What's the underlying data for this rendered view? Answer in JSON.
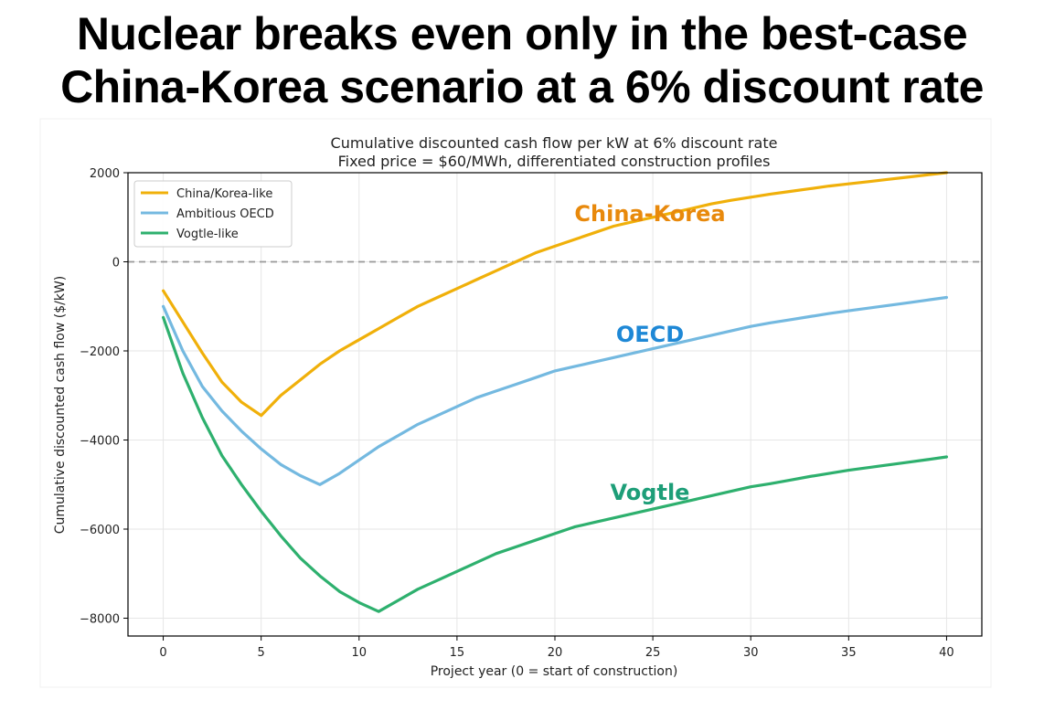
{
  "headline": {
    "line1": "Nuclear breaks even only in the best-case",
    "line2": "China-Korea scenario at a 6% discount rate"
  },
  "chart_data": {
    "type": "line",
    "title": "Cumulative discounted cash flow per kW at 6% discount rate",
    "subtitle": "Fixed price = $60/MWh, differentiated construction profiles",
    "xlabel": "Project year (0 = start of construction)",
    "ylabel": "Cumulative discounted cash flow ($/kW)",
    "xlim": [
      -1.8,
      41.8
    ],
    "ylim": [
      -8400,
      2000
    ],
    "xticks": [
      0,
      5,
      10,
      15,
      20,
      25,
      30,
      35,
      40
    ],
    "yticks": [
      2000,
      0,
      -2000,
      -4000,
      -6000,
      -8000
    ],
    "xtick_labels": [
      "0",
      "5",
      "10",
      "15",
      "20",
      "25",
      "30",
      "35",
      "40"
    ],
    "ytick_labels": [
      "2000",
      "0",
      "−2000",
      "−4000",
      "−6000",
      "−8000"
    ],
    "grid": true,
    "zero_line": true,
    "legend_position": "top-left",
    "series": [
      {
        "name": "China/Korea-like",
        "color": "#f0b00a",
        "x": [
          0,
          1,
          2,
          3,
          4,
          5,
          6,
          7,
          8,
          9,
          10,
          11,
          12,
          13,
          14,
          15,
          16,
          17,
          18,
          19,
          20,
          21,
          22,
          23,
          24,
          25,
          26,
          27,
          28,
          29,
          30,
          31,
          32,
          33,
          34,
          35,
          36,
          37,
          38,
          39,
          40
        ],
        "values": [
          -650,
          -1350,
          -2050,
          -2700,
          -3150,
          -3450,
          -3000,
          -2650,
          -2300,
          -2000,
          -1750,
          -1500,
          -1250,
          -1000,
          -800,
          -600,
          -400,
          -200,
          0,
          200,
          350,
          500,
          650,
          800,
          900,
          1000,
          1100,
          1200,
          1300,
          1380,
          1450,
          1520,
          1580,
          1640,
          1700,
          1750,
          1800,
          1850,
          1900,
          1950,
          2000
        ],
        "end_label": "China-Korea",
        "label_color": "#e8890c"
      },
      {
        "name": "Ambitious OECD",
        "color": "#74b9e0",
        "x": [
          0,
          1,
          2,
          3,
          4,
          5,
          6,
          7,
          8,
          9,
          10,
          11,
          12,
          13,
          14,
          15,
          16,
          17,
          18,
          19,
          20,
          21,
          22,
          23,
          24,
          25,
          26,
          27,
          28,
          29,
          30,
          31,
          32,
          33,
          34,
          35,
          36,
          37,
          38,
          39,
          40
        ],
        "values": [
          -1000,
          -2000,
          -2800,
          -3350,
          -3800,
          -4200,
          -4550,
          -4800,
          -5000,
          -4750,
          -4450,
          -4150,
          -3900,
          -3650,
          -3450,
          -3250,
          -3050,
          -2900,
          -2750,
          -2600,
          -2450,
          -2350,
          -2250,
          -2150,
          -2050,
          -1950,
          -1850,
          -1750,
          -1650,
          -1550,
          -1450,
          -1370,
          -1300,
          -1230,
          -1160,
          -1100,
          -1040,
          -980,
          -920,
          -860,
          -800
        ],
        "end_label": "OECD",
        "label_color": "#1e88d6"
      },
      {
        "name": "Vogtle-like",
        "color": "#2eb06e",
        "x": [
          0,
          1,
          2,
          3,
          4,
          5,
          6,
          7,
          8,
          9,
          10,
          11,
          12,
          13,
          14,
          15,
          16,
          17,
          18,
          19,
          20,
          21,
          22,
          23,
          24,
          25,
          26,
          27,
          28,
          29,
          30,
          31,
          32,
          33,
          34,
          35,
          36,
          37,
          38,
          39,
          40
        ],
        "values": [
          -1250,
          -2500,
          -3500,
          -4350,
          -5000,
          -5600,
          -6150,
          -6650,
          -7050,
          -7400,
          -7650,
          -7850,
          -7600,
          -7350,
          -7150,
          -6950,
          -6750,
          -6550,
          -6400,
          -6250,
          -6100,
          -5950,
          -5850,
          -5750,
          -5650,
          -5550,
          -5450,
          -5350,
          -5250,
          -5150,
          -5050,
          -4980,
          -4900,
          -4820,
          -4750,
          -4680,
          -4620,
          -4560,
          -4500,
          -4440,
          -4380
        ],
        "end_label": "Vogtle",
        "label_color": "#1d9e78"
      }
    ]
  }
}
